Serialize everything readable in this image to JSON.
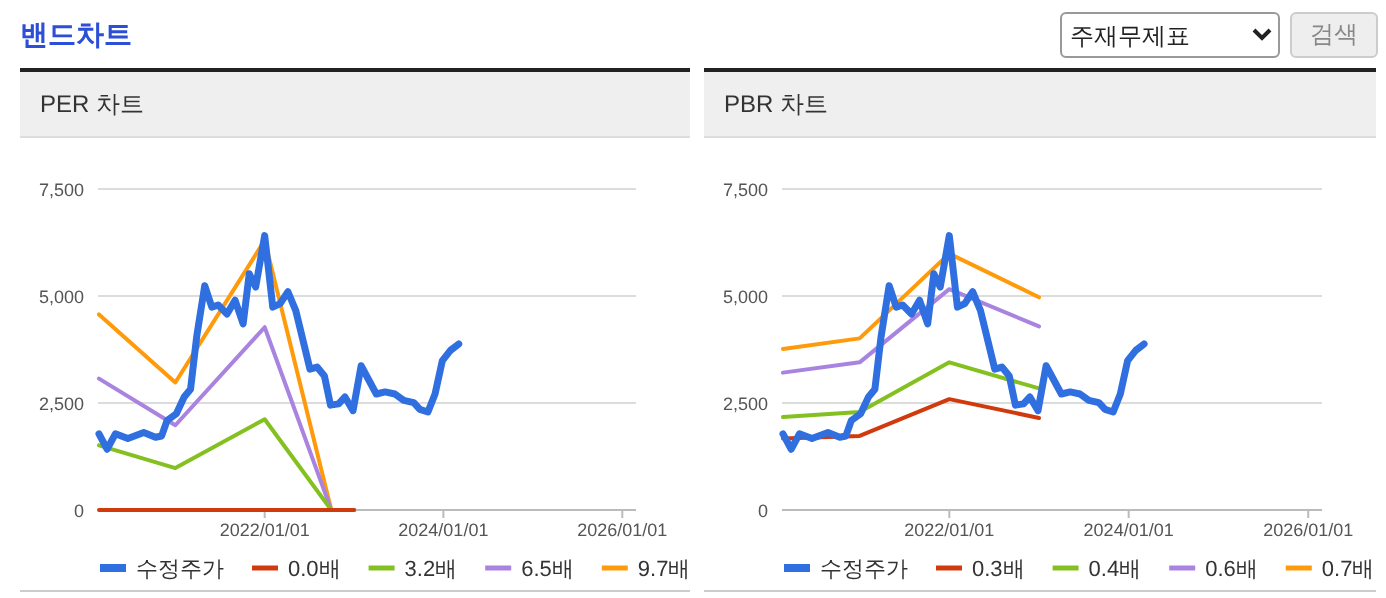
{
  "chart_data": [
    {
      "type": "other",
      "title": "밴드차트",
      "annotations": [
        "주재무제표",
        "검색"
      ]
    },
    {
      "type": "line",
      "title": "PER 차트",
      "xlim": [
        "2020-02-20",
        "2026-02-26"
      ],
      "ylim": [
        0,
        7500
      ],
      "xticks": [
        {
          "value": "2022-01-01",
          "label": "2022/01/01"
        },
        {
          "value": "2024-01-01",
          "label": "2024/01/01"
        },
        {
          "value": "2026-01-01",
          "label": "2026/01/01"
        }
      ],
      "yticks": [
        0,
        {
          "value": 2500,
          "label": "2,500"
        },
        {
          "value": 5000,
          "label": "5,000"
        },
        {
          "value": 7500,
          "label": "7,500"
        }
      ],
      "grid": "y",
      "legend": "bottom",
      "series": [
        {
          "name": "수정주가",
          "color": "#2f6fe0",
          "x": [
            "2020-02-24",
            "2020-03-28",
            "2020-05-01",
            "2020-06-21",
            "2020-08-25",
            "2020-10-12",
            "2020-11-06",
            "2020-11-28",
            "2021-01-05",
            "2021-02-06",
            "2021-03-04",
            "2021-03-29",
            "2021-05-01",
            "2021-05-30",
            "2021-06-25",
            "2021-07-31",
            "2021-09-02",
            "2021-10-05",
            "2021-10-30",
            "2021-11-25",
            "2022-01-01",
            "2022-02-03",
            "2022-03-05",
            "2022-04-06",
            "2022-05-08",
            "2022-06-10",
            "2022-07-05",
            "2022-08-03",
            "2022-09-02",
            "2022-09-27",
            "2022-10-30",
            "2022-11-25",
            "2022-12-28",
            "2023-01-30",
            "2023-03-04",
            "2023-04-02",
            "2023-05-08",
            "2023-06-17",
            "2023-07-23",
            "2023-09-02",
            "2023-09-27",
            "2023-10-30",
            "2023-11-28",
            "2023-12-28",
            "2024-01-30",
            "2024-03-04"
          ],
          "values": [
            1780,
            1420,
            1780,
            1670,
            1810,
            1700,
            1730,
            2090,
            2250,
            2640,
            2820,
            4040,
            5240,
            4740,
            4790,
            4580,
            4900,
            4350,
            5520,
            5210,
            6410,
            4740,
            4820,
            5100,
            4660,
            3880,
            3290,
            3340,
            3130,
            2450,
            2480,
            2640,
            2320,
            3370,
            3020,
            2710,
            2760,
            2710,
            2560,
            2510,
            2350,
            2290,
            2710,
            3490,
            3730,
            3880
          ]
        },
        {
          "name": "0.0배",
          "color": "#d13a0c",
          "x": [
            "2020-02-24",
            "2021-01-01",
            "2022-01-01",
            "2022-09-30",
            "2023-01-01"
          ],
          "values": [
            0,
            0,
            0,
            0,
            0
          ]
        },
        {
          "name": "3.2배",
          "color": "#84c020",
          "x": [
            "2020-02-24",
            "2021-01-01",
            "2022-01-01",
            "2022-09-30",
            "2023-01-01"
          ],
          "values": [
            1510,
            980,
            2120,
            0,
            0
          ]
        },
        {
          "name": "6.5배",
          "color": "#a883e0",
          "x": [
            "2020-02-24",
            "2021-01-01",
            "2022-01-01",
            "2022-09-30",
            "2023-01-01"
          ],
          "values": [
            3070,
            1980,
            4270,
            0,
            0
          ]
        },
        {
          "name": "9.7배",
          "color": "#ff9a0a",
          "x": [
            "2020-02-24",
            "2021-01-01",
            "2022-01-01",
            "2022-09-30",
            "2023-01-01"
          ],
          "values": [
            4570,
            2980,
            6300,
            0,
            0
          ]
        }
      ]
    },
    {
      "type": "line",
      "title": "PBR 차트",
      "xlim": [
        "2020-02-20",
        "2026-02-26"
      ],
      "ylim": [
        0,
        7500
      ],
      "xticks": [
        {
          "value": "2022-01-01",
          "label": "2022/01/01"
        },
        {
          "value": "2024-01-01",
          "label": "2024/01/01"
        },
        {
          "value": "2026-01-01",
          "label": "2026/01/01"
        }
      ],
      "yticks": [
        0,
        {
          "value": 2500,
          "label": "2,500"
        },
        {
          "value": 5000,
          "label": "5,000"
        },
        {
          "value": 7500,
          "label": "7,500"
        }
      ],
      "grid": "y",
      "legend": "bottom",
      "series": [
        {
          "name": "수정주가",
          "color": "#2f6fe0",
          "x": [
            "2020-02-24",
            "2020-03-28",
            "2020-05-01",
            "2020-06-21",
            "2020-08-25",
            "2020-10-12",
            "2020-11-06",
            "2020-11-28",
            "2021-01-05",
            "2021-02-06",
            "2021-03-04",
            "2021-03-29",
            "2021-05-01",
            "2021-05-30",
            "2021-06-25",
            "2021-07-31",
            "2021-09-02",
            "2021-10-05",
            "2021-10-30",
            "2021-11-25",
            "2022-01-01",
            "2022-02-03",
            "2022-03-05",
            "2022-04-06",
            "2022-05-08",
            "2022-06-10",
            "2022-07-05",
            "2022-08-03",
            "2022-09-02",
            "2022-09-27",
            "2022-10-30",
            "2022-11-25",
            "2022-12-28",
            "2023-01-30",
            "2023-03-04",
            "2023-04-02",
            "2023-05-08",
            "2023-06-17",
            "2023-07-23",
            "2023-09-02",
            "2023-09-27",
            "2023-10-30",
            "2023-11-28",
            "2023-12-28",
            "2024-01-30",
            "2024-03-04"
          ],
          "values": [
            1780,
            1420,
            1780,
            1670,
            1810,
            1700,
            1730,
            2090,
            2250,
            2640,
            2820,
            4040,
            5240,
            4740,
            4790,
            4580,
            4900,
            4350,
            5520,
            5210,
            6410,
            4740,
            4820,
            5100,
            4660,
            3880,
            3290,
            3340,
            3130,
            2450,
            2480,
            2640,
            2320,
            3370,
            3020,
            2710,
            2760,
            2710,
            2560,
            2510,
            2350,
            2290,
            2710,
            3490,
            3730,
            3880
          ]
        },
        {
          "name": "0.3배",
          "color": "#d13a0c",
          "x": [
            "2020-02-24",
            "2021-01-01",
            "2022-01-01",
            "2023-01-01"
          ],
          "values": [
            1670,
            1730,
            2590,
            2150
          ]
        },
        {
          "name": "0.4배",
          "color": "#84c020",
          "x": [
            "2020-02-24",
            "2021-01-01",
            "2022-01-01",
            "2023-01-01"
          ],
          "values": [
            2170,
            2290,
            3450,
            2840
          ]
        },
        {
          "name": "0.6배",
          "color": "#a883e0",
          "x": [
            "2020-02-24",
            "2021-01-01",
            "2022-01-01",
            "2023-01-01"
          ],
          "values": [
            3210,
            3450,
            5160,
            4290
          ]
        },
        {
          "name": "0.7배",
          "color": "#ff9a0a",
          "x": [
            "2020-02-24",
            "2021-01-01",
            "2022-01-01",
            "2023-01-01"
          ],
          "values": [
            3760,
            4010,
            5990,
            4970
          ]
        }
      ]
    }
  ]
}
